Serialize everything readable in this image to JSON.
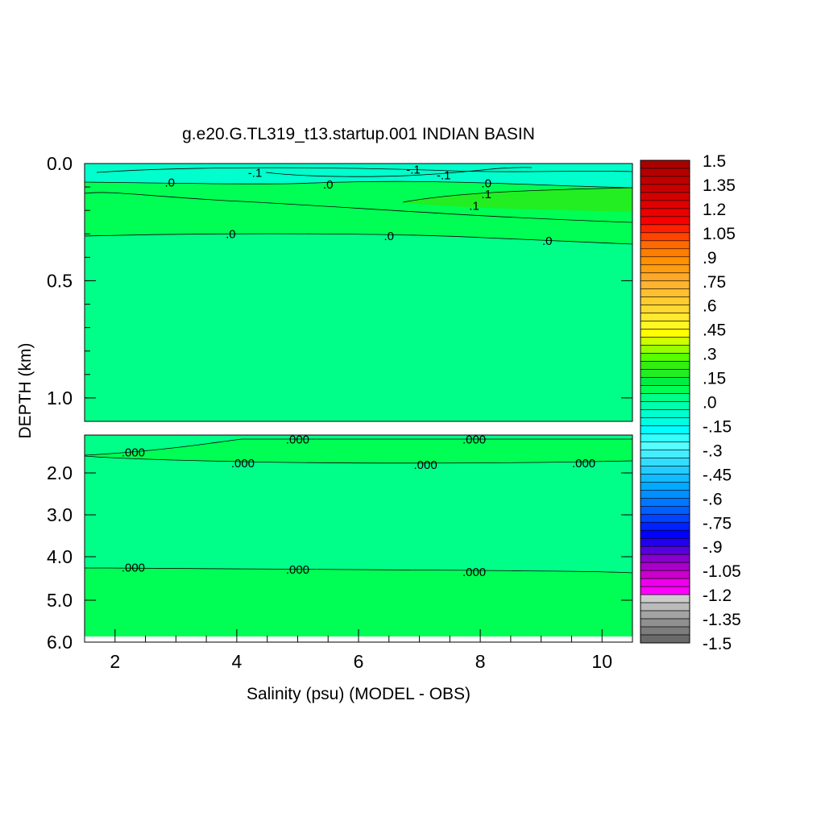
{
  "chart_data": {
    "type": "heatmap",
    "title": "g.e20.G.TL319_t13.startup.001 INDIAN BASIN",
    "xlabel": "Salinity (psu) (MODEL - OBS)",
    "ylabel": "DEPTH (km)",
    "xlim": [
      1.5,
      10.5
    ],
    "x_ticks": [
      "2",
      "4",
      "6",
      "8",
      "10"
    ],
    "panels": [
      {
        "name": "upper",
        "ylim": [
          0.0,
          1.1
        ],
        "y_ticks": [
          "0.0",
          "0.5",
          "1.0"
        ],
        "contour_labels": [
          {
            "text": "-.1",
            "x": 4.3,
            "y": 0.04
          },
          {
            "text": "-.1",
            "x": 6.9,
            "y": 0.025
          },
          {
            "text": "-.1",
            "x": 7.4,
            "y": 0.05
          },
          {
            "text": ".0",
            "x": 2.9,
            "y": 0.08
          },
          {
            "text": ".0",
            "x": 5.5,
            "y": 0.09
          },
          {
            "text": ".0",
            "x": 8.1,
            "y": 0.085
          },
          {
            "text": ".1",
            "x": 8.1,
            "y": 0.13
          },
          {
            "text": ".1",
            "x": 7.9,
            "y": 0.18
          },
          {
            "text": ".0",
            "x": 3.9,
            "y": 0.3
          },
          {
            "text": ".0",
            "x": 6.5,
            "y": 0.31
          },
          {
            "text": ".0",
            "x": 9.1,
            "y": 0.33
          }
        ]
      },
      {
        "name": "lower",
        "ylim": [
          1.0,
          6.0
        ],
        "y_ticks": [
          "2.0",
          "3.0",
          "4.0",
          "5.0",
          "6.0"
        ],
        "contour_labels": [
          {
            "text": ".000",
            "x": 2.3,
            "y": 1.4
          },
          {
            "text": ".000",
            "x": 5.0,
            "y": 1.1
          },
          {
            "text": ".000",
            "x": 7.9,
            "y": 1.1
          },
          {
            "text": ".000",
            "x": 4.1,
            "y": 1.7
          },
          {
            "text": ".000",
            "x": 7.1,
            "y": 1.75
          },
          {
            "text": ".000",
            "x": 9.7,
            "y": 1.7
          },
          {
            "text": ".000",
            "x": 2.3,
            "y": 4.25
          },
          {
            "text": ".000",
            "x": 5.0,
            "y": 4.3
          },
          {
            "text": ".000",
            "x": 7.9,
            "y": 4.35
          }
        ]
      }
    ],
    "colorbar": {
      "range": [
        -1.5,
        1.5
      ],
      "labels": [
        "1.5",
        "1.35",
        "1.2",
        "1.05",
        ".9",
        ".75",
        ".6",
        ".45",
        ".3",
        ".15",
        ".0",
        "-.15",
        "-.3",
        "-.45",
        "-.6",
        "-.75",
        "-.9",
        "-1.05",
        "-1.2",
        "-1.35",
        "-1.5"
      ],
      "colors": [
        "#aa0000",
        "#b40000",
        "#be0000",
        "#c80000",
        "#d40000",
        "#e00000",
        "#ec0000",
        "#f80000",
        "#ff2000",
        "#ff4400",
        "#ff6a00",
        "#ff7d00",
        "#ff9000",
        "#ff9c10",
        "#ffa828",
        "#ffb430",
        "#ffc030",
        "#ffcc30",
        "#ffd830",
        "#ffe830",
        "#fff820",
        "#ffff00",
        "#ccff00",
        "#99ff00",
        "#55ff00",
        "#33ee11",
        "#22ee22",
        "#00ee44",
        "#00ff55",
        "#00ff88",
        "#00ffaa",
        "#00ffcc",
        "#00ffe0",
        "#00ffff",
        "#33ffff",
        "#55ffff",
        "#44eeff",
        "#33ddff",
        "#22ccff",
        "#11bbff",
        "#00aaff",
        "#0090ff",
        "#0077ff",
        "#0060ff",
        "#0044ff",
        "#0022ff",
        "#0000ff",
        "#2200ee",
        "#5500dd",
        "#8800cc",
        "#aa00cc",
        "#cc00cc",
        "#ee00ee",
        "#ff00ff",
        "#cccccc",
        "#bbbbbb",
        "#a4a4a4",
        "#909090",
        "#7c7c7c",
        "#6a6a6a"
      ]
    },
    "fill_colors": {
      "background": "#00ff88",
      "positive": "#00ff55",
      "negative": "#00ffcc",
      "strong_positive": "#22ee22"
    }
  }
}
